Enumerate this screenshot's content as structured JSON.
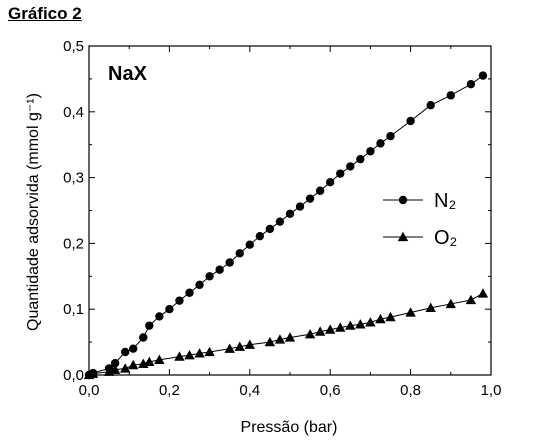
{
  "figure_title": "Gráfico 2",
  "chart_data": {
    "type": "line",
    "title": "NaX",
    "xlabel": "Pressão (bar)",
    "ylabel": "Quantidade adsorvida (mmol g⁻¹)",
    "xlim": [
      0.0,
      1.0
    ],
    "ylim": [
      0.0,
      0.5
    ],
    "x_ticks": [
      0.0,
      0.2,
      0.4,
      0.6,
      0.8,
      1.0
    ],
    "y_ticks": [
      0.0,
      0.1,
      0.2,
      0.3,
      0.4,
      0.5
    ],
    "x_tick_labels": [
      "0,0",
      "0,2",
      "0,4",
      "0,6",
      "0,8",
      "1,0"
    ],
    "y_tick_labels": [
      "0,0",
      "0,1",
      "0,2",
      "0,3",
      "0,4",
      "0,5"
    ],
    "grid": false,
    "legend_position": "right-center",
    "series": [
      {
        "name": "N₂",
        "marker": "circle",
        "color": "#000000",
        "x": [
          0.0,
          0.01,
          0.05,
          0.065,
          0.09,
          0.11,
          0.135,
          0.15,
          0.175,
          0.2,
          0.225,
          0.25,
          0.275,
          0.3,
          0.325,
          0.35,
          0.375,
          0.4,
          0.425,
          0.45,
          0.475,
          0.5,
          0.525,
          0.55,
          0.575,
          0.6,
          0.625,
          0.65,
          0.675,
          0.7,
          0.725,
          0.75,
          0.8,
          0.85,
          0.9,
          0.95,
          0.98
        ],
        "y": [
          0.0,
          0.003,
          0.01,
          0.018,
          0.035,
          0.04,
          0.057,
          0.075,
          0.089,
          0.1,
          0.113,
          0.125,
          0.137,
          0.15,
          0.16,
          0.171,
          0.185,
          0.198,
          0.211,
          0.222,
          0.233,
          0.245,
          0.256,
          0.268,
          0.28,
          0.293,
          0.306,
          0.317,
          0.328,
          0.34,
          0.352,
          0.363,
          0.386,
          0.41,
          0.425,
          0.442,
          0.455
        ]
      },
      {
        "name": "O₂",
        "marker": "triangle",
        "color": "#000000",
        "x": [
          0.0,
          0.01,
          0.05,
          0.065,
          0.09,
          0.11,
          0.135,
          0.15,
          0.175,
          0.225,
          0.25,
          0.275,
          0.3,
          0.35,
          0.375,
          0.4,
          0.45,
          0.475,
          0.5,
          0.55,
          0.575,
          0.6,
          0.625,
          0.65,
          0.675,
          0.7,
          0.725,
          0.75,
          0.8,
          0.85,
          0.9,
          0.95,
          0.98
        ],
        "y": [
          0.0,
          0.002,
          0.005,
          0.008,
          0.01,
          0.015,
          0.017,
          0.02,
          0.023,
          0.028,
          0.03,
          0.033,
          0.035,
          0.04,
          0.043,
          0.046,
          0.05,
          0.054,
          0.057,
          0.062,
          0.066,
          0.069,
          0.072,
          0.075,
          0.077,
          0.08,
          0.085,
          0.088,
          0.095,
          0.102,
          0.108,
          0.114,
          0.124
        ]
      }
    ]
  }
}
